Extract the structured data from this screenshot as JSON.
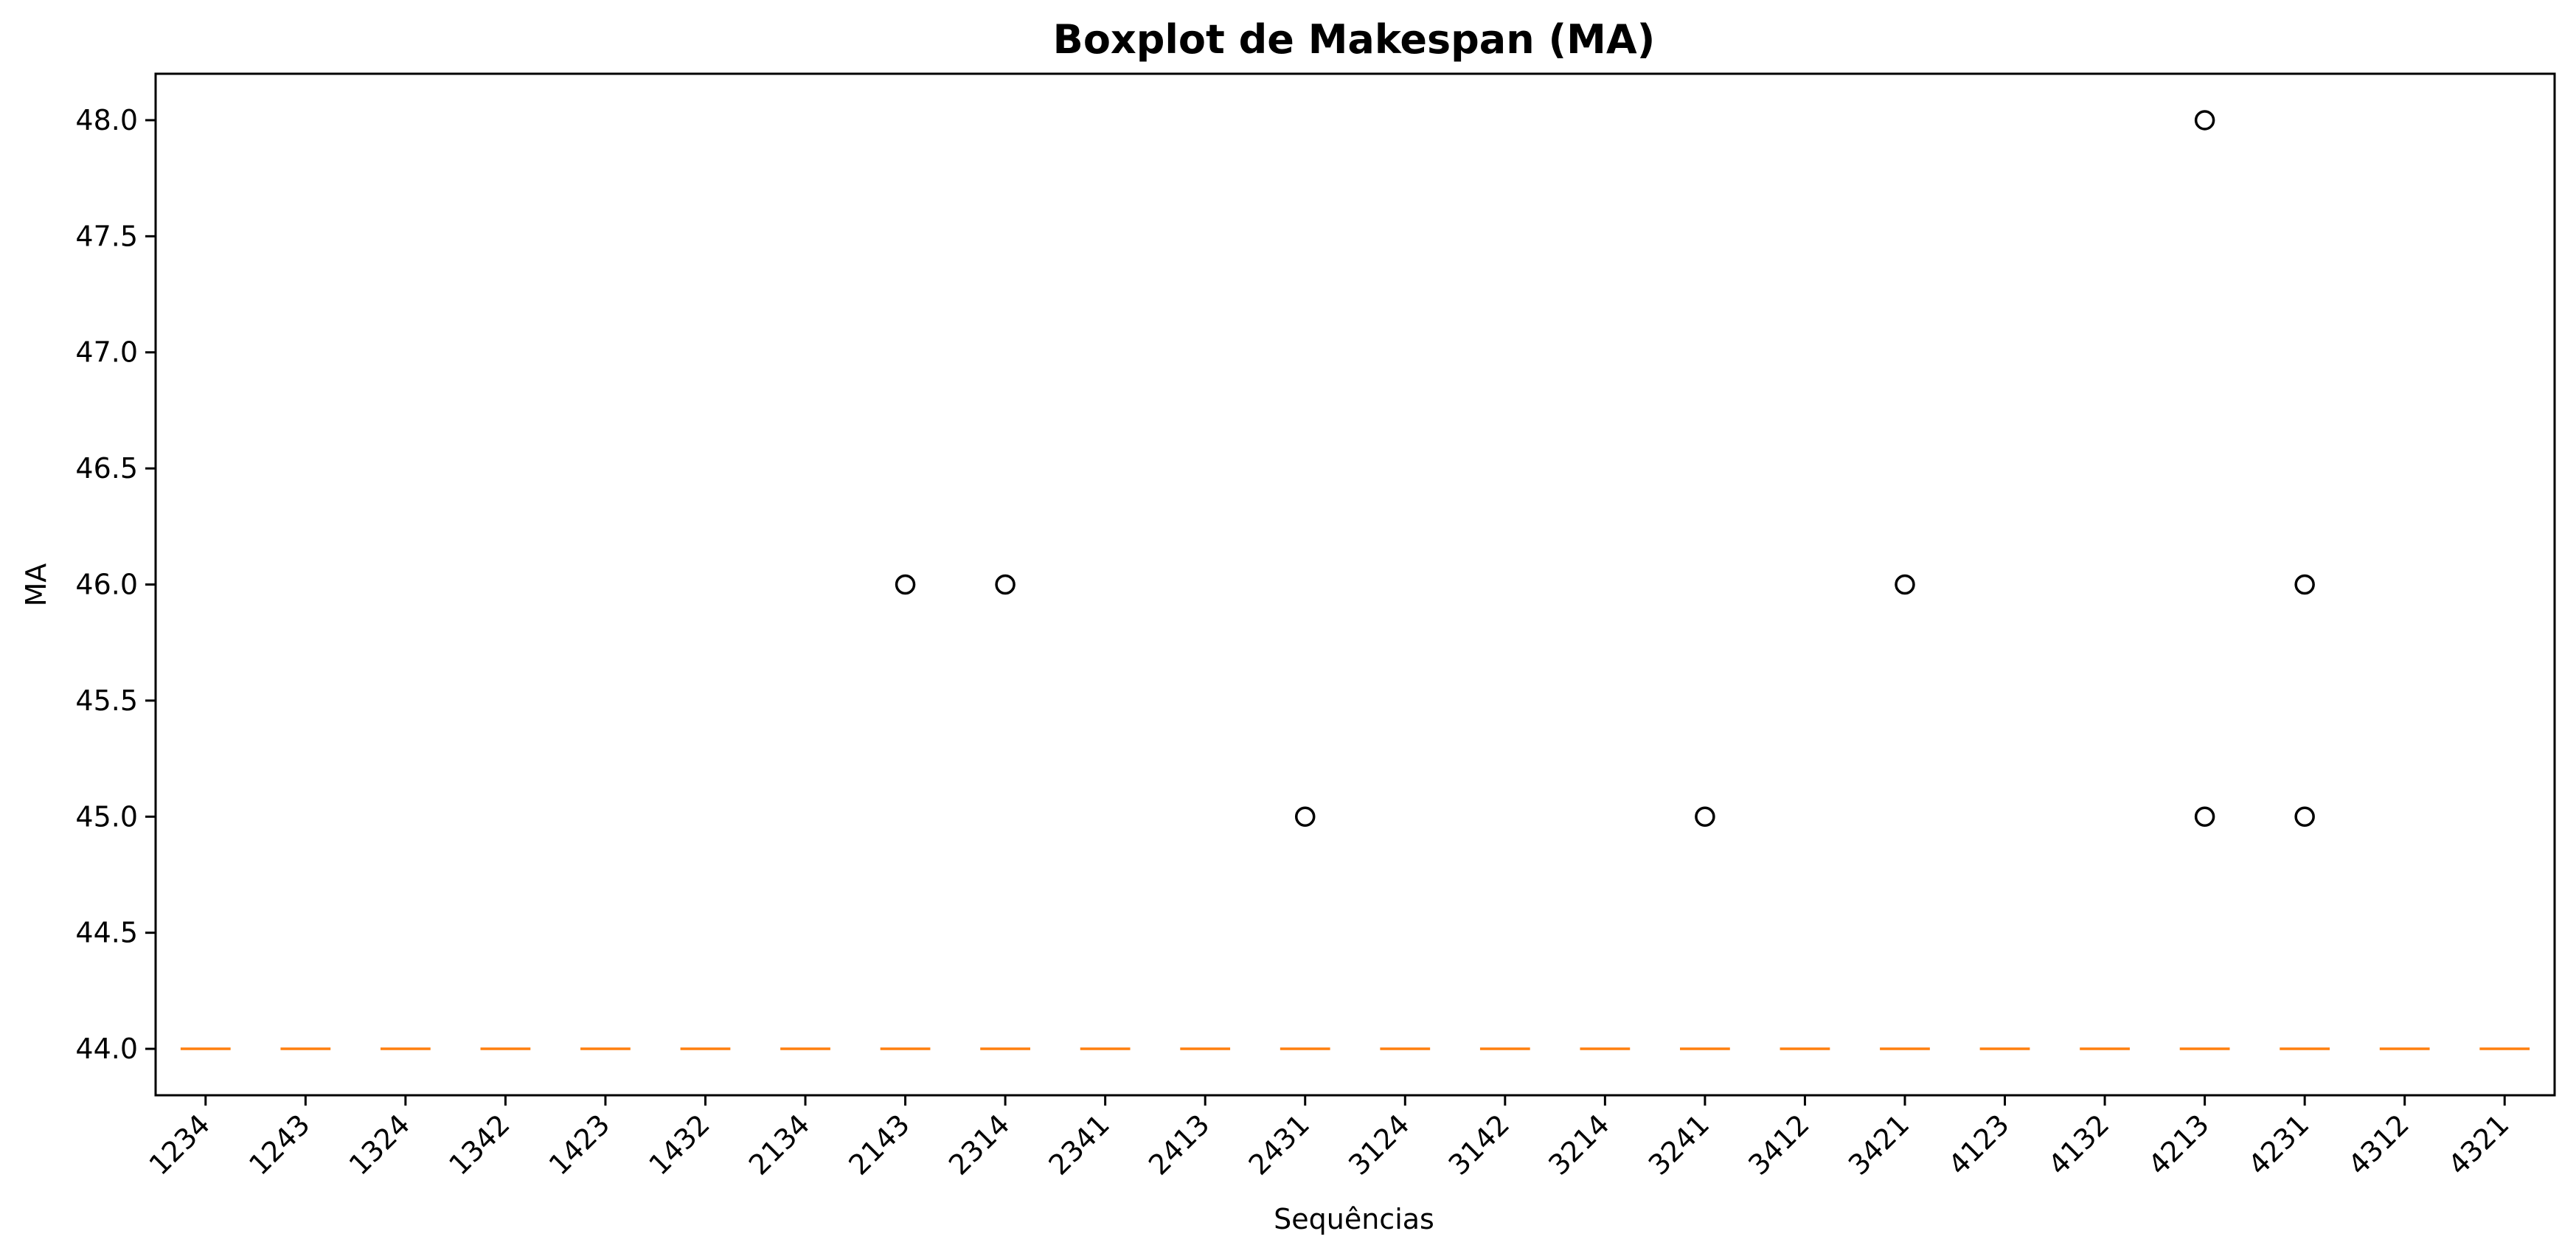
{
  "chart_data": {
    "type": "boxplot",
    "title": "Boxplot de Makespan (MA)",
    "xlabel": "Sequências",
    "ylabel": "MA",
    "ylim": [
      43.8,
      48.2
    ],
    "yticks": [
      "44.0",
      "44.5",
      "45.0",
      "45.5",
      "46.0",
      "46.5",
      "47.0",
      "47.5",
      "48.0"
    ],
    "grid": false,
    "legend": "none",
    "median_color": "#ff7f0e",
    "categories": [
      "1234",
      "1243",
      "1324",
      "1342",
      "1423",
      "1432",
      "2134",
      "2143",
      "2314",
      "2341",
      "2413",
      "2431",
      "3124",
      "3142",
      "3214",
      "3241",
      "3412",
      "3421",
      "4123",
      "4132",
      "4213",
      "4231",
      "4312",
      "4321"
    ],
    "medians": [
      44,
      44,
      44,
      44,
      44,
      44,
      44,
      44,
      44,
      44,
      44,
      44,
      44,
      44,
      44,
      44,
      44,
      44,
      44,
      44,
      44,
      44,
      44,
      44
    ],
    "outliers": [
      {
        "category": "2143",
        "value": 46.0
      },
      {
        "category": "2314",
        "value": 46.0
      },
      {
        "category": "2431",
        "value": 45.0
      },
      {
        "category": "3241",
        "value": 45.0
      },
      {
        "category": "3421",
        "value": 46.0
      },
      {
        "category": "4213",
        "value": 48.0
      },
      {
        "category": "4213",
        "value": 45.0
      },
      {
        "category": "4231",
        "value": 46.0
      },
      {
        "category": "4231",
        "value": 45.0
      }
    ]
  }
}
